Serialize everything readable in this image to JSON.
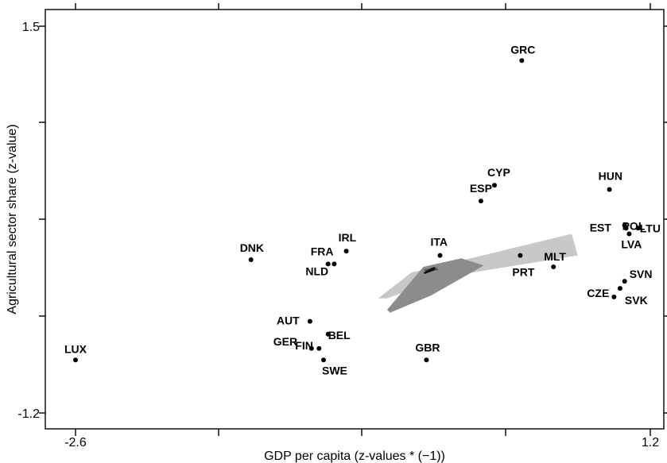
{
  "chart_data": {
    "type": "scatter",
    "xlabel": "GDP per capita (z-values * (−1))",
    "ylabel": "Agricultural sector share (z-value)",
    "xlim": [
      -2.6,
      1.2
    ],
    "ylim": [
      -1.2,
      1.5
    ],
    "x_tick_labels": [
      "-2.6",
      "1.2"
    ],
    "y_tick_labels": [
      "1.5",
      "-1.2"
    ],
    "grid": false,
    "points": [
      {
        "label": "LUX",
        "x": -2.6,
        "y": -0.83
      },
      {
        "label": "DNK",
        "x": -1.44,
        "y": -0.13
      },
      {
        "label": "IRL",
        "x": -0.81,
        "y": -0.07
      },
      {
        "label": "FRA",
        "x": -0.93,
        "y": -0.16
      },
      {
        "label": "NLD",
        "x": -0.89,
        "y": -0.16
      },
      {
        "label": "AUT",
        "x": -1.05,
        "y": -0.56
      },
      {
        "label": "GER",
        "x": -1.04,
        "y": -0.75
      },
      {
        "label": "BEL",
        "x": -0.93,
        "y": -0.65
      },
      {
        "label": "FIN",
        "x": -0.99,
        "y": -0.75
      },
      {
        "label": "SWE",
        "x": -0.96,
        "y": -0.83
      },
      {
        "label": "GBR",
        "x": -0.28,
        "y": -0.83
      },
      {
        "label": "ITA",
        "x": -0.19,
        "y": -0.1
      },
      {
        "label": "ESP",
        "x": 0.08,
        "y": 0.28
      },
      {
        "label": "CYP",
        "x": 0.17,
        "y": 0.39
      },
      {
        "label": "GRC",
        "x": 0.35,
        "y": 1.26
      },
      {
        "label": "PRT",
        "x": 0.34,
        "y": -0.1
      },
      {
        "label": "MLT",
        "x": 0.56,
        "y": -0.18
      },
      {
        "label": "HUN",
        "x": 0.93,
        "y": 0.36
      },
      {
        "label": "POL",
        "x": 1.04,
        "y": 0.09
      },
      {
        "label": "EST",
        "x": 1.03,
        "y": 0.11
      },
      {
        "label": "LTU",
        "x": 1.12,
        "y": 0.09
      },
      {
        "label": "LVA",
        "x": 1.06,
        "y": 0.05
      },
      {
        "label": "SVN",
        "x": 1.03,
        "y": -0.28
      },
      {
        "label": "CZE",
        "x": 0.96,
        "y": -0.39
      },
      {
        "label": "SVK",
        "x": 1.0,
        "y": -0.33
      }
    ],
    "shaded_regions": [
      {
        "color": "#c8c8c8",
        "polygon": [
          [
            -0.6,
            -0.4
          ],
          [
            -0.38,
            -0.22
          ],
          [
            0.68,
            0.05
          ],
          [
            0.72,
            -0.1
          ],
          [
            -0.15,
            -0.25
          ],
          [
            -0.54,
            -0.4
          ]
        ]
      },
      {
        "color": "#8c8c8c",
        "polygon": [
          [
            -0.54,
            -0.48
          ],
          [
            -0.3,
            -0.18
          ],
          [
            -0.05,
            -0.12
          ],
          [
            0.1,
            -0.17
          ],
          [
            -0.25,
            -0.38
          ],
          [
            -0.52,
            -0.5
          ]
        ]
      },
      {
        "color": "#555555",
        "polygon": [
          [
            -0.3,
            -0.2
          ],
          [
            -0.22,
            -0.18
          ],
          [
            -0.2,
            -0.2
          ],
          [
            -0.28,
            -0.22
          ]
        ]
      },
      {
        "color": "#111111",
        "polygon": [
          [
            -0.3,
            -0.22
          ],
          [
            -0.23,
            -0.18
          ],
          [
            -0.22,
            -0.2
          ],
          [
            -0.29,
            -0.23
          ]
        ]
      }
    ],
    "colors": {
      "point": "#000000",
      "frame": "#000000"
    }
  }
}
